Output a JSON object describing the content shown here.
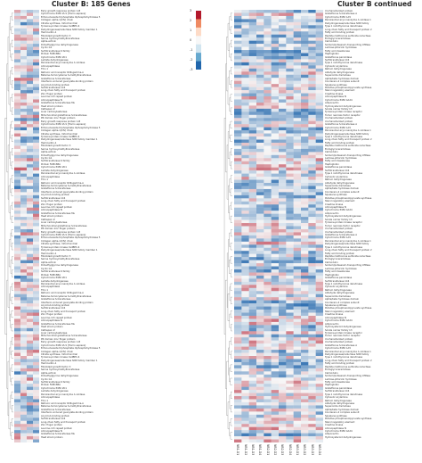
{
  "titles": {
    "left": "Cluster B: 185 Genes",
    "right": "Cluster B continued"
  },
  "legend": {
    "ticks": [
      "3",
      "2",
      "1",
      "0",
      "-1",
      "-2",
      "-3"
    ],
    "colors": [
      "#b2182b",
      "#ef8a62",
      "#fddbc7",
      "#f7f7f7",
      "#d1e5f0",
      "#67a9cf",
      "#2166ac"
    ]
  },
  "colors": {
    "high": "#d6604d",
    "mid": "#f7f7f7",
    "low": "#2166ac"
  },
  "chart_data": {
    "type": "heatmap",
    "left": {
      "title": "Cluster B: 185 Genes",
      "columns": 4,
      "row_labels": [
        "Early growth response protein 1-B",
        "Cytochrome P450 2U1 [Homo sapiens]",
        "Ectonucleoside triphosphate diphosphohydrolase 5",
        "Collagen alpha-1(XIV) chain",
        "Citrate synthase, mitochondrial",
        "Tyrosine-protein kinase CsdBEC-4",
        "Dehydrogenase/reductase SDR family member 1",
        "Hemicentin-1",
        "Fibroblast growth factor 3",
        "Serine hydroxymethyltransferase",
        "Alpha-actinin",
        "Dimethylglycine dehydrogenase",
        "Cyclin G1",
        "Sulfotransferase 6 family",
        "Protein FAM188A",
        "Cytochrome P450 2K1",
        "Lactate dehydrogenase",
        "Peroxisomal acyl-coenzyme A oxidase",
        "Aminopeptidase",
        "Thin 1",
        "Retinoic acid receptor RXR-gamma-A",
        "Betaine-homocysteine S-methyltransferase",
        "Glutathione S-transferase",
        "Interferon-induced guanylate-binding protein",
        "Acyl-CoA binding protein",
        "Sulfotransferase 1C4",
        "Long-chain fatty acid transport protein",
        "Zinc finger protein",
        "Leucine-rich repeat protein",
        "Aminopeptidase N",
        "Glutathione S-transferase Mu",
        "Heat shock protein",
        "Cathepsin Z",
        "Liver carboxylesterase",
        "Mitochondrial glutathione S-transferase",
        "PR domain zinc finger protein"
      ]
    },
    "right": {
      "title": "Cluster B continued",
      "columns": 12,
      "row_labels": [
        "Uncharacterized protein",
        "Glutathione S-transferase A",
        "Cytochrome P450 1A5",
        "Peroxisomal acyl-coenzyme A oxidase 1",
        "Dehydrogenase/reductase SDR family",
        "Type 1 iodothyronine deiodinase",
        "Long-chain fatty acid transport protein 2",
        "Fatty acid binding protein",
        "Peptide methionine sulfoxide reductase",
        "Endoglycoceramidase",
        "Calmodulin",
        "Sodium/potassium-transporting ATPase",
        "Lactose-phlorizin hydrolase",
        "Fatty acid desaturase",
        "Haptoglobin",
        "Glutathione peroxidase",
        "Sulfotransferase 1C4",
        "Type 1 iodothyronine deiodinase",
        "Cytosolic arylamine",
        "Retinol dehydrogenase",
        "Aldehyde dehydrogenase",
        "Superoxide dismutase",
        "Alpha/beta hydrolase domain",
        "Condensin-2 complex subunit",
        "Squalene synthase",
        "Putative phosphoenolpyruvate synthase",
        "Sterol regulatory element",
        "Creatine kinase",
        "Aminopeptidase N",
        "Cytochrome P450 4A24",
        "Adiponectin",
        "Hydroxysteroid dehydrogenase",
        "Solute carrier family 13",
        "Tyrosine-protein kinase receptor",
        "Tumor necrosis factor receptor",
        "Uncharacterized protein"
      ],
      "column_labels": [
        "NB1-D1",
        "NB1-D2",
        "NB1-D3",
        "NB1-D4",
        "NB2-D1",
        "NB2-D2",
        "NB2-D3",
        "NB2-D4",
        "NB3-D1",
        "NB3-D2",
        "NB3-D3",
        "NB3-D4"
      ]
    },
    "color_scale": {
      "min": -3,
      "max": 3,
      "low": "#2166ac",
      "mid": "#f7f7f7",
      "high": "#b2182b"
    }
  }
}
